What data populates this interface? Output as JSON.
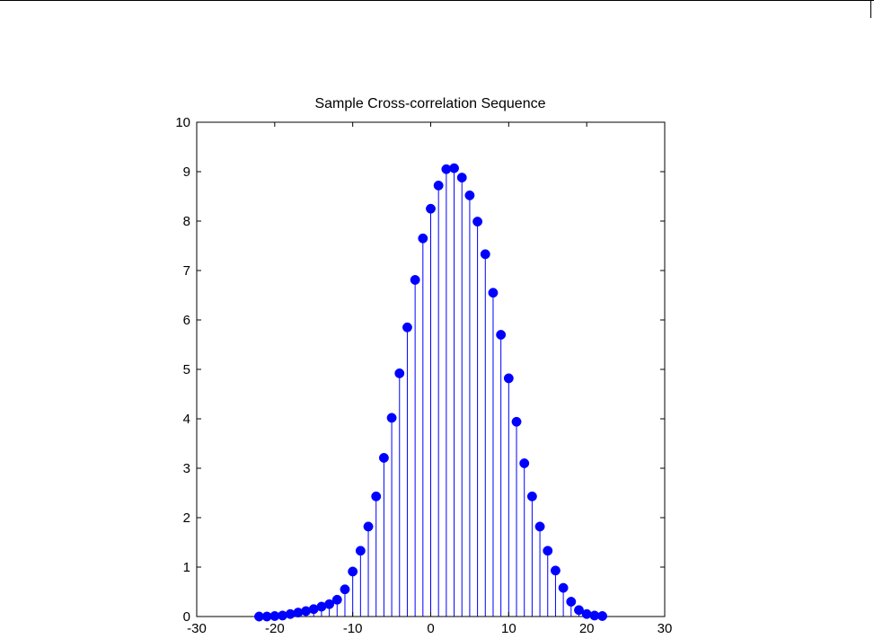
{
  "colors": {
    "background": "#ffffff",
    "axes": "#000000",
    "stem": "#0000ff",
    "marker": "#0000ff"
  },
  "chart_data": {
    "type": "scatter",
    "subtype": "stem",
    "title": "Sample Cross-correlation Sequence",
    "xlabel": "",
    "ylabel": "",
    "xlim": [
      -30,
      30
    ],
    "ylim": [
      0,
      10
    ],
    "x_ticks": [
      -30,
      -20,
      -10,
      0,
      10,
      20,
      30
    ],
    "x_tick_labels": [
      "-30",
      "-20",
      "-10",
      "0",
      "10",
      "20",
      "30"
    ],
    "y_ticks": [
      0,
      1,
      2,
      3,
      4,
      5,
      6,
      7,
      8,
      9,
      10
    ],
    "y_tick_labels": [
      "0",
      "1",
      "2",
      "3",
      "4",
      "5",
      "6",
      "7",
      "8",
      "9",
      "10"
    ],
    "grid": false,
    "legend": "none",
    "marker": "filled-circle",
    "series": [
      {
        "x": [
          -22,
          -21,
          -20,
          -19,
          -18,
          -17,
          -16,
          -15,
          -14,
          -13,
          -12,
          -11,
          -10,
          -9,
          -8,
          -7,
          -6,
          -5,
          -4,
          -3,
          -2,
          -1,
          0,
          1,
          2,
          3,
          4,
          5,
          6,
          7,
          8,
          9,
          10,
          11,
          12,
          13,
          14,
          15,
          16,
          17,
          18,
          19,
          20,
          21,
          22
        ],
        "y": [
          0.0,
          0.0,
          0.01,
          0.02,
          0.05,
          0.08,
          0.11,
          0.15,
          0.2,
          0.25,
          0.34,
          0.55,
          0.91,
          1.33,
          1.82,
          2.43,
          3.21,
          4.02,
          4.92,
          5.85,
          6.81,
          7.65,
          8.25,
          8.72,
          9.05,
          9.07,
          8.88,
          8.52,
          7.99,
          7.33,
          6.55,
          5.7,
          4.82,
          3.94,
          3.1,
          2.43,
          1.82,
          1.33,
          0.93,
          0.58,
          0.3,
          0.13,
          0.05,
          0.02,
          0.01
        ]
      }
    ]
  }
}
